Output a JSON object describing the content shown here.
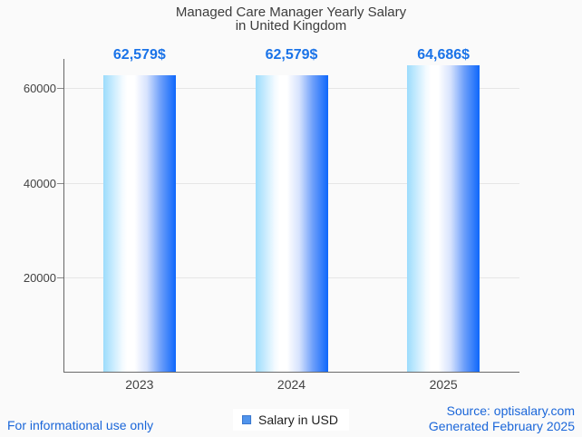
{
  "title": {
    "line1": "Managed Care Manager Yearly Salary",
    "line2": "in United Kingdom"
  },
  "chart_data": {
    "type": "bar",
    "title": "Managed Care Manager Yearly Salary in United Kingdom",
    "categories": [
      "2023",
      "2024",
      "2025"
    ],
    "series": [
      {
        "name": "Salary in USD",
        "values": [
          62579,
          62579,
          64686
        ],
        "value_labels": [
          "62,579$",
          "62,579$",
          "64,686$"
        ]
      }
    ],
    "ylim": [
      0,
      66100
    ],
    "yticks": [
      20000,
      40000,
      60000
    ],
    "grid": true,
    "legend_position": "bottom",
    "bar_gradient": [
      "#9cdcfc",
      "#ffffff",
      "#0e67fb"
    ],
    "value_label_color": "#1a73e8"
  },
  "legend": {
    "label": "Salary in USD",
    "swatch_color": "#5094ec"
  },
  "footer": {
    "left": "For informational use only",
    "source": "Source: optisalary.com",
    "generated": "Generated February 2025",
    "link_color": "#1a66d9"
  }
}
